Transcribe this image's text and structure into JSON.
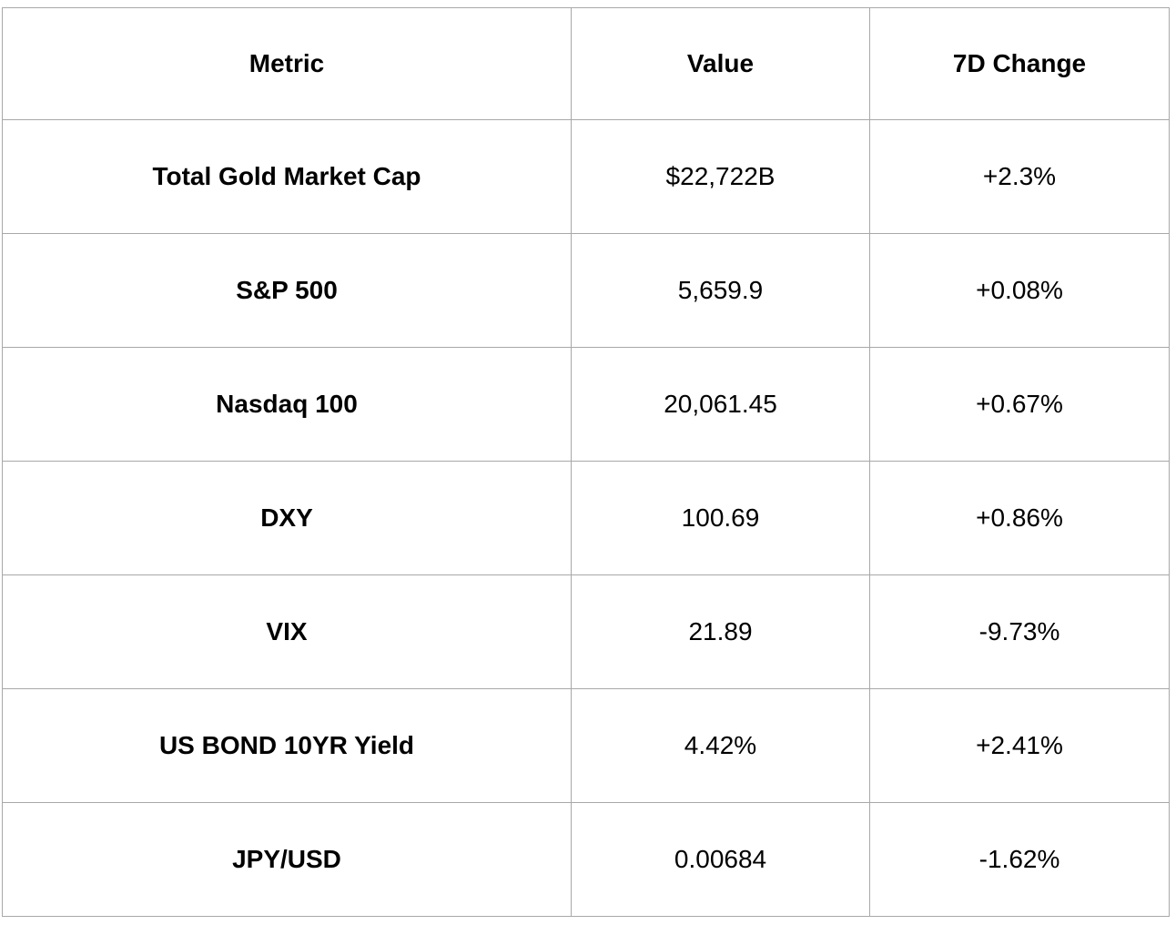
{
  "table": {
    "columns": [
      "Metric",
      "Value",
      "7D Change"
    ],
    "rows": [
      {
        "metric": "Total Gold Market Cap",
        "value": "$22,722B",
        "change": "+2.3%"
      },
      {
        "metric": "S&P 500",
        "value": "5,659.9",
        "change": "+0.08%"
      },
      {
        "metric": "Nasdaq 100",
        "value": "20,061.45",
        "change": "+0.67%"
      },
      {
        "metric": "DXY",
        "value": "100.69",
        "change": "+0.86%"
      },
      {
        "metric": "VIX",
        "value": "21.89",
        "change": "-9.73%"
      },
      {
        "metric": "US BOND 10YR Yield",
        "value": "4.42%",
        "change": "+2.41%"
      },
      {
        "metric": "JPY/USD",
        "value": "0.00684",
        "change": "-1.62%"
      }
    ]
  },
  "colors": {
    "border": "#a8a8a8",
    "text": "#000000",
    "background": "#ffffff"
  }
}
